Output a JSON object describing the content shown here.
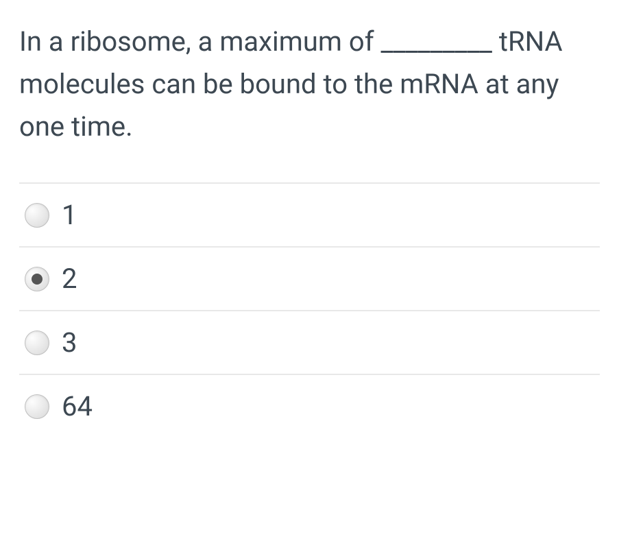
{
  "question": {
    "text": "In a ribosome, a maximum of _________ tRNA molecules can be bound to the mRNA at any one time.",
    "text_color": "#3d4852",
    "font_size": 40
  },
  "options": [
    {
      "label": "1",
      "selected": false
    },
    {
      "label": "2",
      "selected": true
    },
    {
      "label": "3",
      "selected": false
    },
    {
      "label": "64",
      "selected": false
    }
  ],
  "styling": {
    "background_color": "#ffffff",
    "divider_color": "#e8e8e8",
    "radio_unselected_bg": "#d8d8d8",
    "radio_selected_dot": "#555555",
    "option_text_color": "#3d4852",
    "option_font_size": 40
  }
}
